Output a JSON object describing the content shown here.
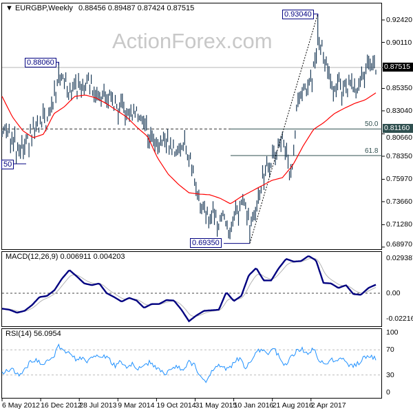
{
  "header": {
    "symbol": "EURGBP,Weekly",
    "ohlc": "0.88456 0.89487 0.87424 0.87515"
  },
  "watermark": "ActionForex.com",
  "colors": {
    "bars": "#1b3a57",
    "ma": "#ff0000",
    "macd": "#000080",
    "signal": "#b4b4b4",
    "rsi": "#1e90ff",
    "fib": "#2f4f4f",
    "price_tag": "#000000",
    "fib_tag": "#2f4f4f"
  },
  "chart_data": [
    {
      "type": "bar",
      "title": "EURGBP,Weekly",
      "y_ticks": [
        "0.92420",
        "0.90110",
        "0.87515",
        "0.85350",
        "0.83040",
        "0.81160",
        "0.80660",
        "0.78350",
        "0.75970",
        "0.73660",
        "0.71280",
        "0.68970"
      ],
      "ylim": [
        0.6897,
        0.9242
      ],
      "current_price": "0.87515",
      "closes": [
        0.8098,
        0.8133,
        0.7991,
        0.7849,
        0.7956,
        0.7991,
        0.8098,
        0.8133,
        0.8169,
        0.8204,
        0.8453,
        0.8702,
        0.8631,
        0.8489,
        0.856,
        0.856,
        0.8631,
        0.8595,
        0.8453,
        0.8418,
        0.8453,
        0.8382,
        0.8311,
        0.8275,
        0.824,
        0.8311,
        0.8275,
        0.8169,
        0.8062,
        0.7991,
        0.7956,
        0.7991,
        0.792,
        0.7884,
        0.792,
        0.7884,
        0.7742,
        0.7458,
        0.7316,
        0.7245,
        0.728,
        0.7174,
        0.7245,
        0.7032,
        0.7174,
        0.7316,
        0.7352,
        0.7174,
        0.7209,
        0.7494,
        0.7671,
        0.7778,
        0.7884,
        0.8027,
        0.7813,
        0.7636,
        0.8311,
        0.8453,
        0.8595,
        0.8666,
        0.9093,
        0.8951,
        0.8666,
        0.8524,
        0.8595,
        0.8489,
        0.856,
        0.8453,
        0.8595,
        0.8702,
        0.8773,
        0.8752
      ],
      "moving_average": [
        0.8453,
        0.824,
        0.8098,
        0.8027,
        0.8062,
        0.8275,
        0.8346,
        0.8453,
        0.8467,
        0.8439,
        0.8382,
        0.8311,
        0.824,
        0.8133,
        0.8041,
        0.7813,
        0.765,
        0.7543,
        0.7458,
        0.7444,
        0.7437,
        0.7401,
        0.7344,
        0.7415,
        0.7472,
        0.7529,
        0.7586,
        0.7614,
        0.7742,
        0.7941,
        0.8112,
        0.8183,
        0.8275,
        0.8332,
        0.8382,
        0.8418,
        0.8489
      ],
      "annotations": [
        {
          "label": "0.88060",
          "value": 0.8806
        },
        {
          "label": "0.93040",
          "value": 0.9304
        },
        {
          "label": "0.69350",
          "value": 0.6935
        },
        {
          "label": "50",
          "value": 0.775
        }
      ],
      "fibonacci": [
        {
          "level": "50.0",
          "price": 0.8116,
          "tag": "0.81160"
        },
        {
          "level": "61.8",
          "price": 0.7842
        }
      ]
    },
    {
      "type": "line",
      "title": "MACD(12,26,9) 0.006911 0.004203",
      "y_ticks": [
        "0.029387",
        "0.00",
        "-0.022161"
      ],
      "ylim": [
        -0.022161,
        0.029387
      ],
      "macd": [
        -0.0124,
        -0.0133,
        -0.0157,
        -0.0142,
        -0.0096,
        -0.0031,
        -0.0022,
        0.0024,
        0.0116,
        0.0187,
        0.0135,
        0.0079,
        0.0065,
        0.0079,
        0.0,
        -0.0031,
        -0.0068,
        -0.0037,
        -0.0059,
        -0.0118,
        -0.0087,
        -0.0087,
        -0.0055,
        -0.0059,
        -0.0133,
        -0.0225,
        -0.0179,
        -0.0142,
        -0.0137,
        -0.0133,
        0.0009,
        -0.0063,
        -0.0022,
        0.0144,
        0.0203,
        0.0103,
        0.0103,
        0.02,
        0.0277,
        0.0255,
        0.0259,
        0.0301,
        0.0264,
        0.0083,
        0.0079,
        0.0042,
        0.0065,
        -0.0007,
        -0.0013,
        0.0042,
        0.0069
      ]
    },
    {
      "type": "line",
      "title": "RSI(14) 56.0954",
      "y_ticks": [
        "100",
        "70",
        "30",
        "0"
      ],
      "ylim": [
        0,
        100
      ],
      "levels": [
        70,
        30
      ],
      "rsi": [
        33,
        39,
        38,
        28,
        38,
        52,
        54,
        47,
        54,
        58,
        76,
        66,
        66,
        54,
        58,
        52,
        57,
        61,
        61,
        54,
        43,
        52,
        44,
        47,
        41,
        44,
        50,
        44,
        36,
        32,
        41,
        43,
        35,
        50,
        45,
        28,
        20,
        36,
        44,
        43,
        38,
        52,
        57,
        38,
        54,
        67,
        71,
        63,
        72,
        58,
        45,
        58,
        69,
        72,
        60,
        73,
        54,
        45,
        57,
        50,
        58,
        45,
        44,
        49,
        60,
        60,
        56
      ]
    }
  ],
  "x_axis": [
    "6 May 2012",
    "16 Dec 2012",
    "28 Jul 2013",
    "9 Mar 2014",
    "19 Oct 2014",
    "31 May 2015",
    "10 Jan 2016",
    "21 Aug 2016",
    "2 Apr 2017"
  ]
}
